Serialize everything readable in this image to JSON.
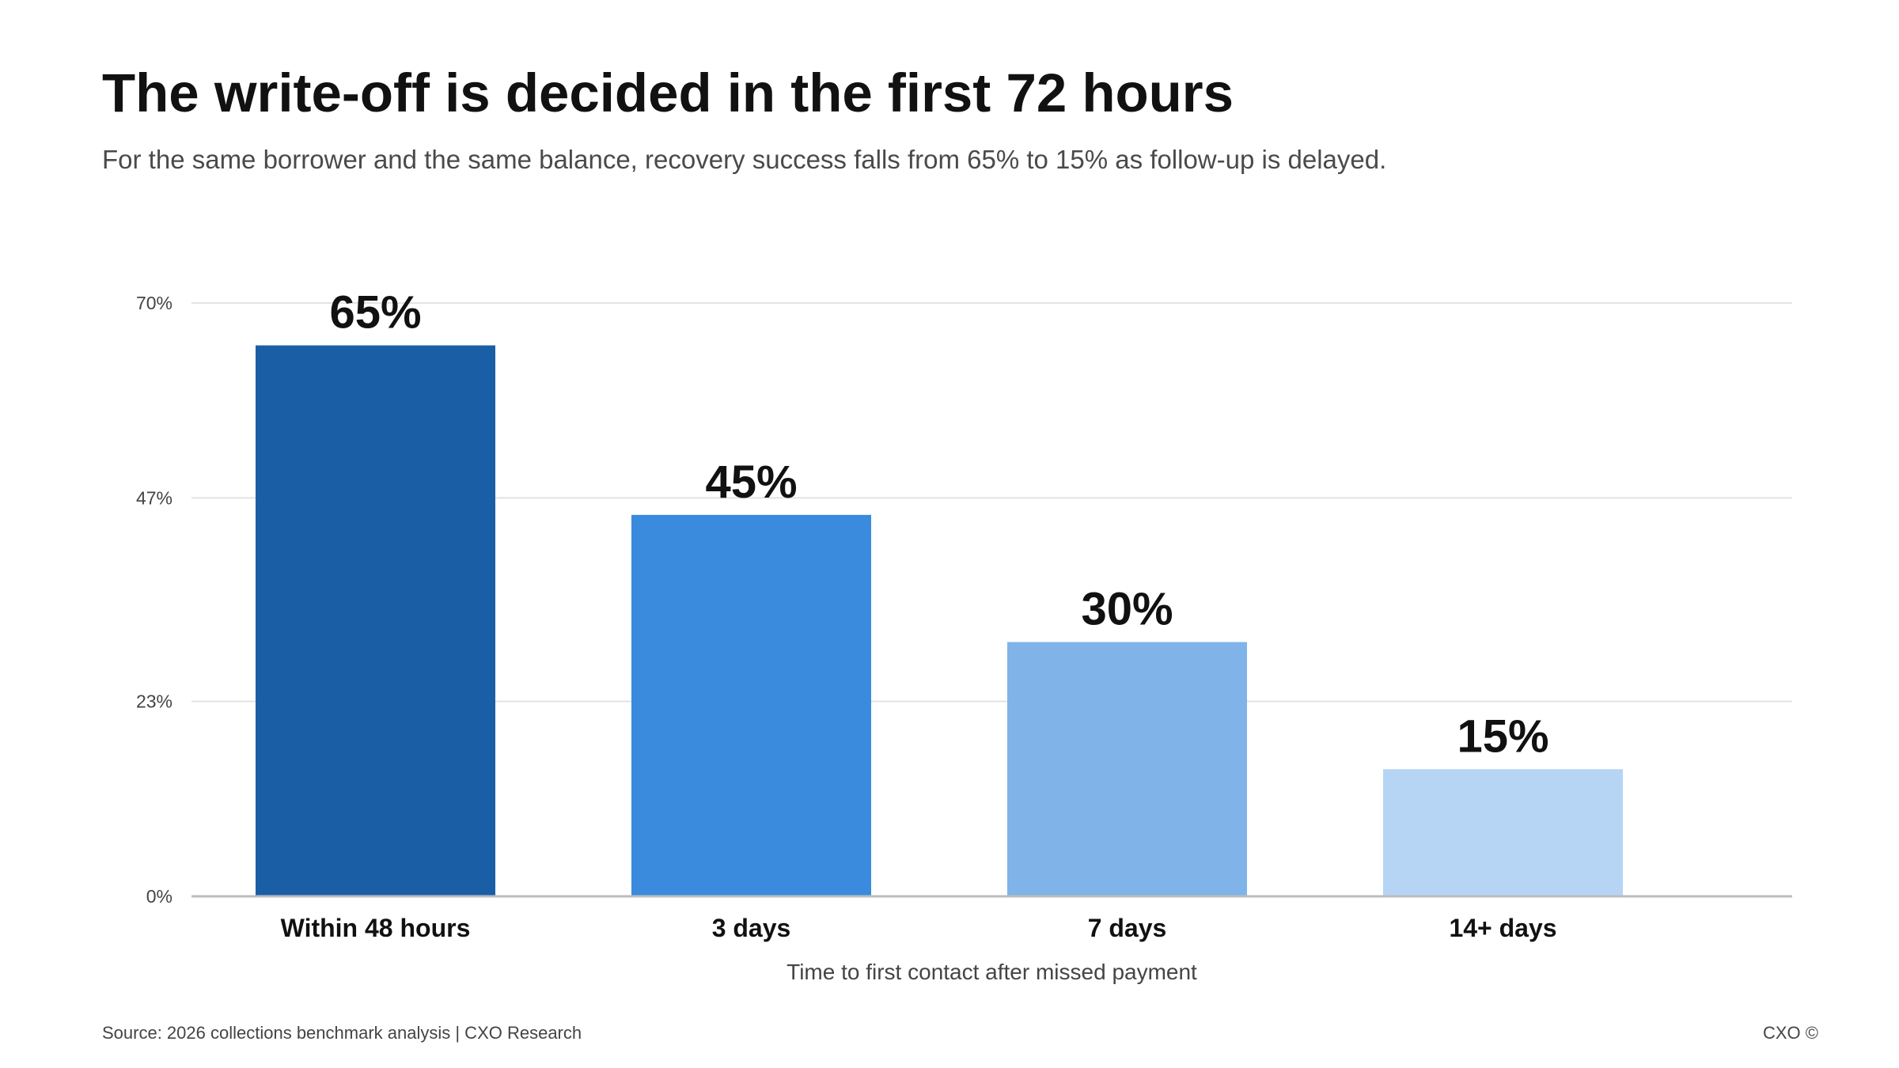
{
  "header": {
    "title": "The write-off is decided in the first 72 hours",
    "subtitle": "For the same borrower and the same balance, recovery success falls from 65% to 15% as follow-up is delayed."
  },
  "chart_data": {
    "type": "bar",
    "categories": [
      "Within 48 hours",
      "3 days",
      "7 days",
      "14+ days"
    ],
    "values": [
      65,
      45,
      30,
      15
    ],
    "value_labels": [
      "65%",
      "45%",
      "30%",
      "15%"
    ],
    "colors": [
      "#1a5fa6",
      "#3a8ade",
      "#80b4e8",
      "#b6d4f4"
    ],
    "title": "The write-off is decided in the first 72 hours",
    "xlabel": "Time to first contact after missed payment",
    "ylabel": "",
    "ylim": [
      0,
      70
    ],
    "yticks": [
      0,
      23,
      47,
      70
    ],
    "ytick_labels": [
      "0%",
      "23%",
      "47%",
      "70%"
    ],
    "grid": true
  },
  "footer": {
    "source": "Source: 2026 collections benchmark analysis | CXO Research",
    "brand": "CXO ©"
  }
}
